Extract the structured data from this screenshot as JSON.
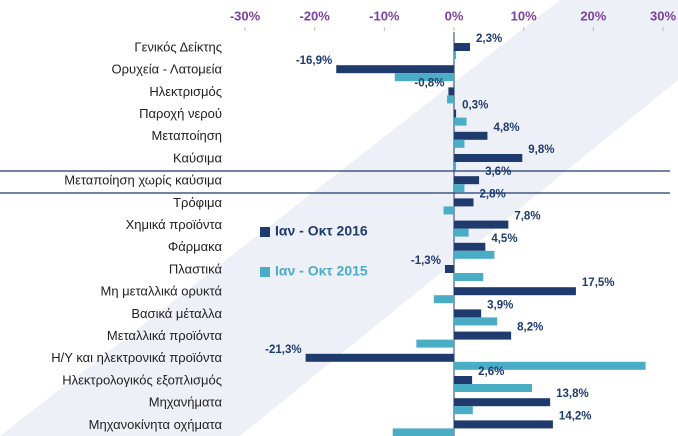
{
  "chart_data": {
    "type": "bar",
    "orientation": "horizontal",
    "categories": [
      "Γενικός Δείκτης",
      "Ορυχεία - Λατομεία",
      "Ηλεκτρισμός",
      "Παροχή νερού",
      "Μεταποίηση",
      "Καύσιμα",
      "Μεταποίηση χωρίς καύσιμα",
      "Τρόφιμα",
      "Χημικά προϊόντα",
      "Φάρμακα",
      "Πλαστικά",
      "Μη μεταλλικά ορυκτά",
      "Βασικά μέταλλα",
      "Μεταλλικά προϊόντα",
      "Η/Υ και ηλεκτρονικά προϊόντα",
      "Ηλεκτρολογικός εξοπλισμός",
      "Μηχανήματα",
      "Μηχανοκίνητα οχήματα"
    ],
    "series": [
      {
        "name": "Ιαν - Οκτ 2016",
        "color": "#1f3b6e",
        "values": [
          2.3,
          -16.9,
          -0.8,
          0.3,
          4.8,
          9.8,
          3.6,
          2.8,
          7.8,
          4.5,
          -1.3,
          17.5,
          3.9,
          8.2,
          -21.3,
          2.6,
          13.8,
          14.2
        ],
        "value_labels": [
          "2,3%",
          "-16,9%",
          "-0,8%",
          "0,3%",
          "4,8%",
          "9,8%",
          "3,6%",
          "2,8%",
          "7,8%",
          "4,5%",
          "-1,3%",
          "17,5%",
          "3,9%",
          "8,2%",
          "-21,3%",
          "2,6%",
          "13,8%",
          "14,2%"
        ]
      },
      {
        "name": "Ιαν - Οκτ 2015",
        "color": "#4bacc6",
        "values": [
          0.3,
          -8.5,
          -1.0,
          1.8,
          1.5,
          0.3,
          1.5,
          -1.5,
          2.1,
          5.8,
          4.2,
          -2.9,
          6.2,
          -5.4,
          27.5,
          11.2,
          2.7,
          -8.8
        ]
      }
    ],
    "xlim": [
      -30,
      30
    ],
    "xticks": [
      {
        "value": -30,
        "label": "-30%"
      },
      {
        "value": -20,
        "label": "-20%"
      },
      {
        "value": -10,
        "label": "-10%"
      },
      {
        "value": 0,
        "label": "0%"
      },
      {
        "value": 10,
        "label": "10%"
      },
      {
        "value": 20,
        "label": "20%"
      },
      {
        "value": 30,
        "label": "30%"
      }
    ],
    "legend": "left",
    "grid": false
  }
}
